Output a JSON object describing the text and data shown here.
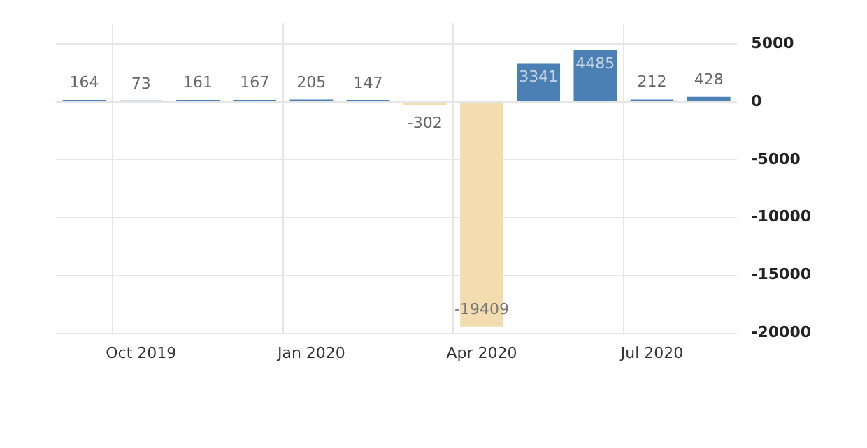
{
  "chart_data": {
    "type": "bar",
    "categories": [
      null,
      "Oct 2019",
      null,
      null,
      "Jan 2020",
      null,
      null,
      "Apr 2020",
      null,
      null,
      "Jul 2020",
      null
    ],
    "values": [
      164,
      73,
      161,
      167,
      205,
      147,
      -302,
      -19409,
      3341,
      4485,
      212,
      428
    ],
    "colors": [
      "#4a80b4",
      "#4a80b4",
      "#4a80b4",
      "#4a80b4",
      "#4a80b4",
      "#4a80b4",
      "#f3dcae",
      "#f3dcae",
      "#4a80b4",
      "#4a80b4",
      "#4a80b4",
      "#4a80b4"
    ],
    "ylim": [
      -20000,
      6800
    ],
    "yticks": [
      5000,
      0,
      -5000,
      -10000,
      -15000,
      -20000
    ],
    "grid": true,
    "data_labels": true
  }
}
